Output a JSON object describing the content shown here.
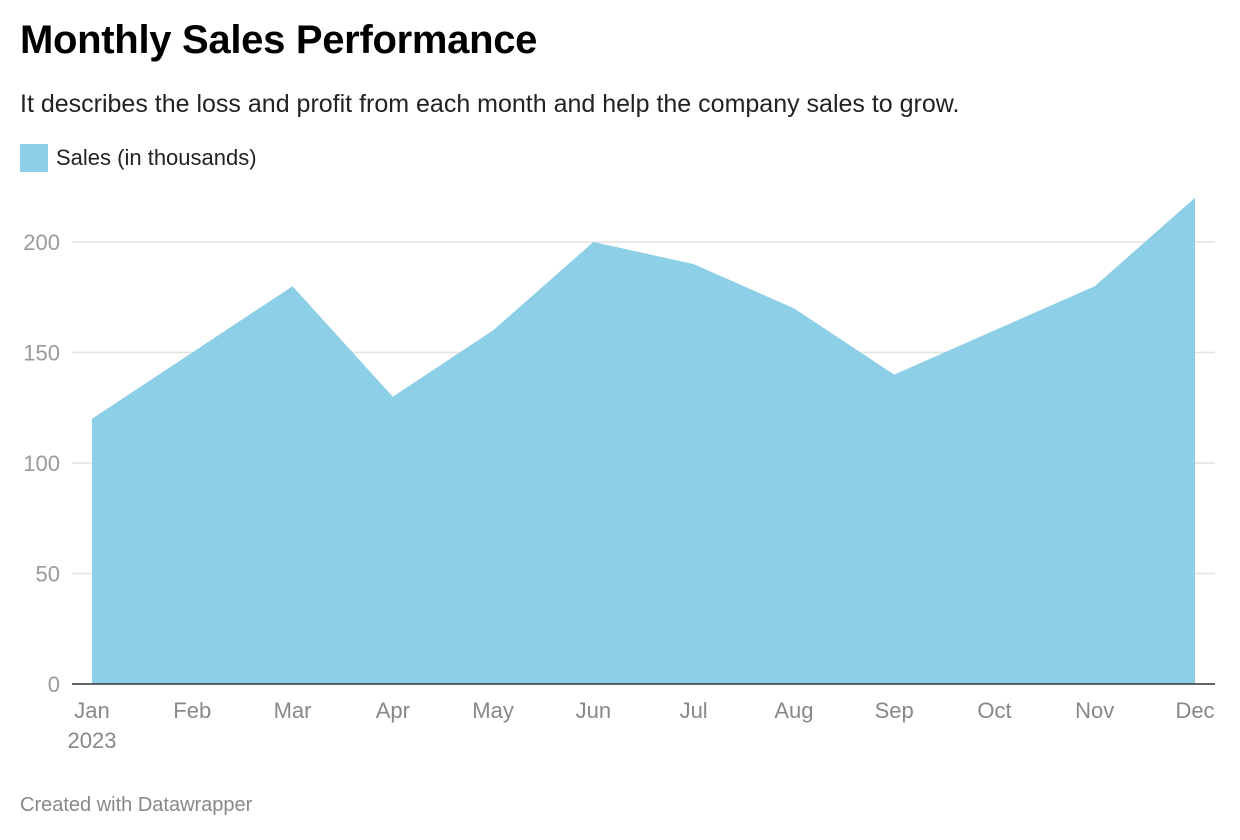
{
  "header": {
    "title": "Monthly Sales Performance",
    "subtitle": "It describes the loss and profit from each month and help the company sales to grow."
  },
  "legend": {
    "label": "Sales (in thousands)",
    "color": "#8ccfe6"
  },
  "footer": {
    "credit": "Created with Datawrapper"
  },
  "chart_data": {
    "type": "area",
    "title": "Monthly Sales Performance",
    "subtitle": "It describes the loss and profit from each month and help the company sales to grow.",
    "categories": [
      "Jan",
      "Feb",
      "Mar",
      "Apr",
      "May",
      "Jun",
      "Jul",
      "Aug",
      "Sep",
      "Oct",
      "Nov",
      "Dec"
    ],
    "year_label": "2023",
    "series": [
      {
        "name": "Sales (in thousands)",
        "color": "#8ccfe6",
        "values": [
          120,
          150,
          180,
          130,
          160,
          200,
          190,
          170,
          140,
          160,
          180,
          220
        ]
      }
    ],
    "yticks": [
      0,
      50,
      100,
      150,
      200
    ],
    "ylim": [
      0,
      220
    ],
    "xlabel": "",
    "ylabel": "",
    "grid": true,
    "legend_position": "top-left"
  }
}
